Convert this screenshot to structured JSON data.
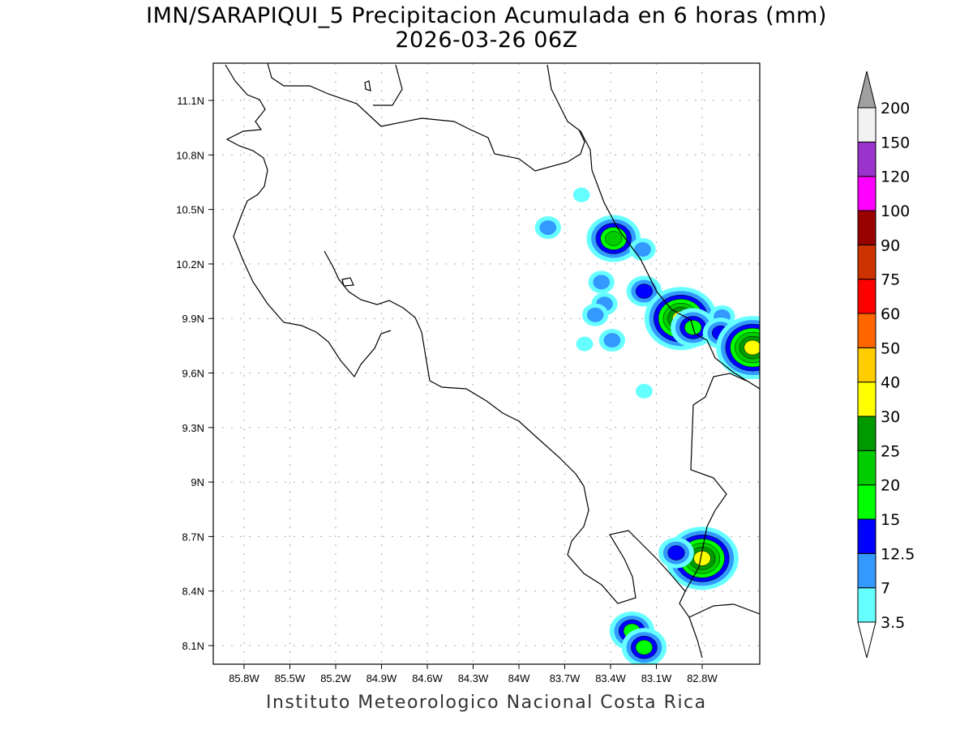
{
  "title": "IMN/SARAPIQUI_5 Precipitacion Acumulada en 6 horas (mm)",
  "subtitle": "2026-03-26 06Z",
  "footer": "Instituto Meteorologico Nacional Costa Rica",
  "map": {
    "lon_range": [
      -86.0,
      -82.42
    ],
    "lat_range": [
      8.0,
      11.3
    ],
    "x_ticks": [
      {
        "lon": -85.8,
        "label": "85.8W"
      },
      {
        "lon": -85.5,
        "label": "85.5W"
      },
      {
        "lon": -85.2,
        "label": "85.2W"
      },
      {
        "lon": -84.9,
        "label": "84.9W"
      },
      {
        "lon": -84.6,
        "label": "84.6W"
      },
      {
        "lon": -84.3,
        "label": "84.3W"
      },
      {
        "lon": -84.0,
        "label": "84W"
      },
      {
        "lon": -83.7,
        "label": "83.7W"
      },
      {
        "lon": -83.4,
        "label": "83.4W"
      },
      {
        "lon": -83.1,
        "label": "83.1W"
      },
      {
        "lon": -82.8,
        "label": "82.8W"
      }
    ],
    "y_ticks": [
      {
        "lat": 11.1,
        "label": "11.1N"
      },
      {
        "lat": 10.8,
        "label": "10.8N"
      },
      {
        "lat": 10.5,
        "label": "10.5N"
      },
      {
        "lat": 10.2,
        "label": "10.2N"
      },
      {
        "lat": 9.9,
        "label": "9.9N"
      },
      {
        "lat": 9.6,
        "label": "9.6N"
      },
      {
        "lat": 9.3,
        "label": "9.3N"
      },
      {
        "lat": 9.0,
        "label": "9N"
      },
      {
        "lat": 8.7,
        "label": "8.7N"
      },
      {
        "lat": 8.4,
        "label": "8.4N"
      },
      {
        "lat": 8.1,
        "label": "8.1N"
      }
    ],
    "grid": "dotted",
    "precip_cells": [
      {
        "lon": -83.38,
        "lat": 10.34,
        "max_mm": 20
      },
      {
        "lon": -83.81,
        "lat": 10.4,
        "max_mm": 7
      },
      {
        "lon": -83.19,
        "lat": 10.28,
        "max_mm": 7
      },
      {
        "lon": -83.46,
        "lat": 10.1,
        "max_mm": 7
      },
      {
        "lon": -83.18,
        "lat": 10.05,
        "max_mm": 12.5
      },
      {
        "lon": -83.44,
        "lat": 9.98,
        "max_mm": 7
      },
      {
        "lon": -83.5,
        "lat": 9.92,
        "max_mm": 7
      },
      {
        "lon": -82.94,
        "lat": 9.9,
        "max_mm": 30
      },
      {
        "lon": -82.86,
        "lat": 9.85,
        "max_mm": 15
      },
      {
        "lon": -82.67,
        "lat": 9.91,
        "max_mm": 7
      },
      {
        "lon": -82.68,
        "lat": 9.82,
        "max_mm": 12.5
      },
      {
        "lon": -82.47,
        "lat": 9.74,
        "max_mm": 30
      },
      {
        "lon": -83.57,
        "lat": 9.76,
        "max_mm": 3.5
      },
      {
        "lon": -83.39,
        "lat": 9.78,
        "max_mm": 7
      },
      {
        "lon": -83.59,
        "lat": 10.58,
        "max_mm": 3.5
      },
      {
        "lon": -83.18,
        "lat": 9.5,
        "max_mm": 3.5
      },
      {
        "lon": -82.8,
        "lat": 8.58,
        "max_mm": 30
      },
      {
        "lon": -82.97,
        "lat": 8.61,
        "max_mm": 12.5
      },
      {
        "lon": -83.26,
        "lat": 8.18,
        "max_mm": 15
      },
      {
        "lon": -83.18,
        "lat": 8.09,
        "max_mm": 15
      }
    ]
  },
  "colorbar": {
    "levels": [
      "3.5",
      "7",
      "12.5",
      "15",
      "20",
      "25",
      "30",
      "40",
      "50",
      "60",
      "75",
      "90",
      "100",
      "120",
      "150",
      "200"
    ],
    "colors": [
      "#66ffff",
      "#3399ff",
      "#0000ff",
      "#00ff00",
      "#00cc00",
      "#009900",
      "#ffff00",
      "#ffcc00",
      "#ff6600",
      "#ff0000",
      "#cc3300",
      "#990000",
      "#ff00ff",
      "#9933cc",
      "#f2f2f2"
    ],
    "below_color": "#ffffff",
    "above_color": "#a0a0a0"
  }
}
